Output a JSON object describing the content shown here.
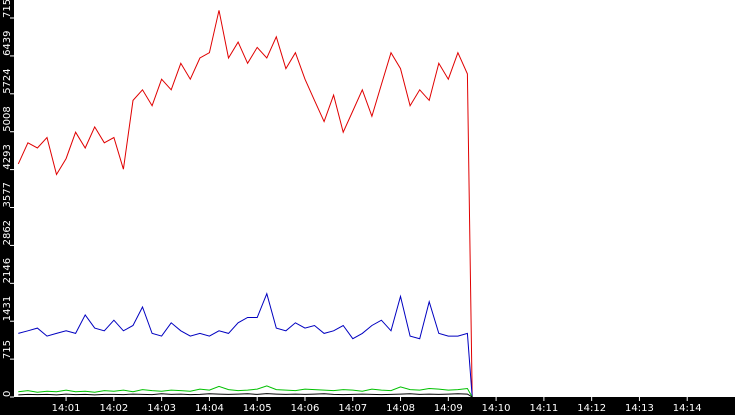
{
  "chart_data": {
    "type": "line",
    "x": [
      0,
      0.2,
      0.4,
      0.6,
      0.8,
      1.0,
      1.2,
      1.4,
      1.6,
      1.8,
      2.0,
      2.2,
      2.4,
      2.6,
      2.8,
      3.0,
      3.2,
      3.4,
      3.6,
      3.8,
      4.0,
      4.2,
      4.4,
      4.6,
      4.8,
      5.0,
      5.2,
      5.4,
      5.6,
      5.8,
      6.0,
      6.2,
      6.4,
      6.6,
      6.8,
      7.0,
      7.2,
      7.4,
      7.6,
      7.8,
      8.0,
      8.2,
      8.4,
      8.6,
      8.8,
      9.0,
      9.2,
      9.4,
      9.5
    ],
    "series": [
      {
        "color": "#e00000",
        "values": [
          4400,
          4800,
          4700,
          4900,
          4200,
          4500,
          5000,
          4700,
          5100,
          4800,
          4900,
          4300,
          5600,
          5800,
          5500,
          6000,
          5800,
          6300,
          6000,
          6400,
          6500,
          7300,
          6400,
          6700,
          6300,
          6600,
          6400,
          6800,
          6200,
          6500,
          6000,
          5600,
          5200,
          5700,
          5000,
          5400,
          5800,
          5300,
          5900,
          6500,
          6200,
          5500,
          5800,
          5600,
          6300,
          6000,
          6500,
          6100,
          0
        ]
      },
      {
        "color": "#0000c0",
        "values": [
          1200,
          1250,
          1300,
          1150,
          1200,
          1250,
          1200,
          1550,
          1300,
          1250,
          1450,
          1250,
          1350,
          1700,
          1200,
          1150,
          1400,
          1250,
          1150,
          1200,
          1150,
          1250,
          1200,
          1400,
          1500,
          1500,
          1950,
          1300,
          1250,
          1400,
          1300,
          1350,
          1200,
          1250,
          1350,
          1100,
          1200,
          1350,
          1450,
          1250,
          1900,
          1150,
          1100,
          1800,
          1200,
          1150,
          1150,
          1200,
          0
        ]
      },
      {
        "color": "#00c000",
        "values": [
          100,
          120,
          90,
          110,
          100,
          130,
          100,
          110,
          90,
          120,
          110,
          130,
          100,
          140,
          120,
          110,
          130,
          120,
          110,
          150,
          130,
          200,
          140,
          120,
          130,
          150,
          210,
          140,
          130,
          120,
          150,
          140,
          130,
          120,
          140,
          130,
          110,
          150,
          130,
          120,
          190,
          140,
          130,
          160,
          150,
          130,
          140,
          160,
          0
        ]
      },
      {
        "color": "#000000",
        "values": [
          40,
          50,
          45,
          50,
          40,
          55,
          45,
          50,
          40,
          50,
          50,
          45,
          55,
          50,
          45,
          60,
          50,
          55,
          45,
          50,
          60,
          55,
          50,
          55,
          60,
          50,
          65,
          55,
          50,
          55,
          50,
          55,
          60,
          50,
          45,
          50,
          55,
          50,
          45,
          50,
          55,
          60,
          50,
          55,
          50,
          55,
          60,
          55,
          0
        ]
      }
    ],
    "xlim": [
      -0.09,
      15.0
    ],
    "xticks": [
      {
        "value": 1,
        "label": "14:01"
      },
      {
        "value": 2,
        "label": "14:02"
      },
      {
        "value": 3,
        "label": "14:03"
      },
      {
        "value": 4,
        "label": "14:04"
      },
      {
        "value": 5,
        "label": "14:05"
      },
      {
        "value": 6,
        "label": "14:06"
      },
      {
        "value": 7,
        "label": "14:07"
      },
      {
        "value": 8,
        "label": "14:08"
      },
      {
        "value": 9,
        "label": "14:09"
      },
      {
        "value": 10,
        "label": "14:10"
      },
      {
        "value": 11,
        "label": "14:11"
      },
      {
        "value": 12,
        "label": "14:12"
      },
      {
        "value": 13,
        "label": "14:13"
      },
      {
        "value": 14,
        "label": "14:14"
      }
    ],
    "ylim": [
      0,
      7495
    ],
    "yticks": [
      0,
      715,
      1431,
      2146,
      2862,
      3577,
      4293,
      5008,
      5724,
      6439,
      7155
    ]
  }
}
